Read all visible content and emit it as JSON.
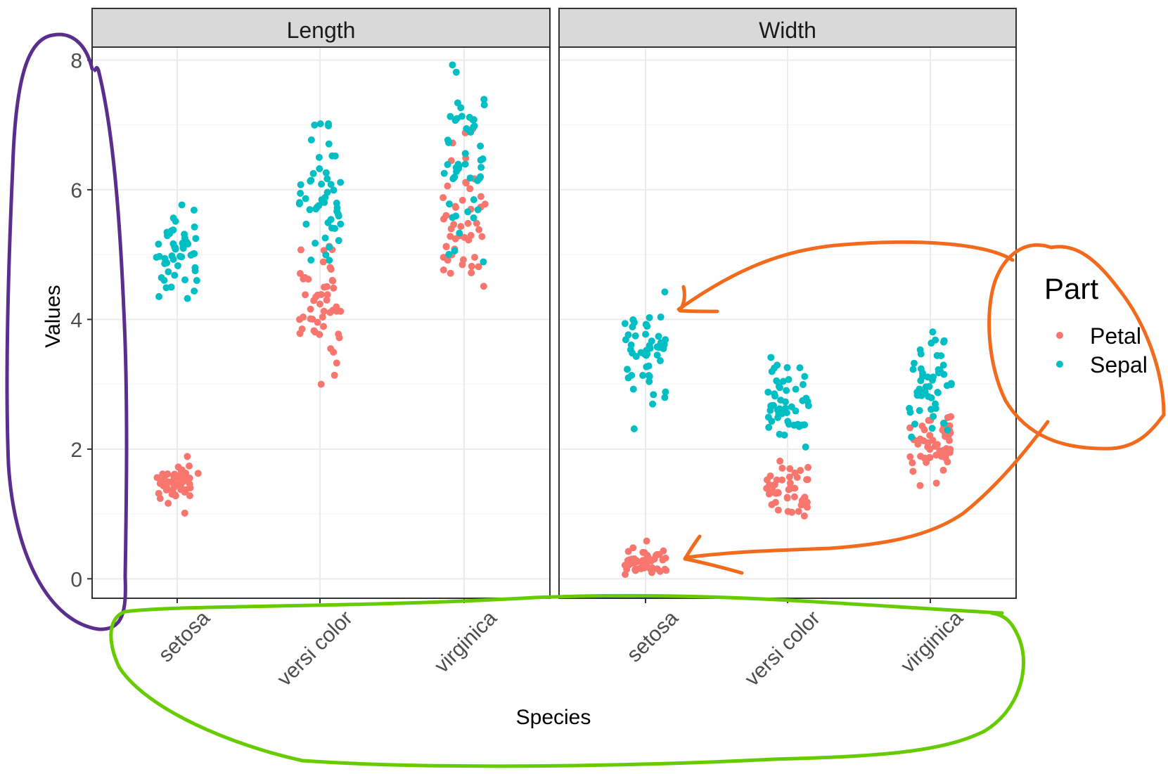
{
  "chart_data": {
    "type": "scatter",
    "style": "jittered strip chart, faceted",
    "facets": [
      "Length",
      "Width"
    ],
    "categories": [
      "setosa",
      "versicolor",
      "virginica"
    ],
    "x_tick_labels": [
      "setosa",
      "versi color",
      "virginica"
    ],
    "xlabel": "Species",
    "ylabel": "Values",
    "ylim": [
      -0.3,
      8.2
    ],
    "yticks": [
      0,
      2,
      4,
      6,
      8
    ],
    "grid": true,
    "legend": {
      "title": "Part",
      "position": "right",
      "entries": [
        "Petal",
        "Sepal"
      ]
    },
    "colors": {
      "Petal": "#F8766D",
      "Sepal": "#00BFC4"
    },
    "series": [
      {
        "name": "Petal",
        "facet": "Length",
        "species": "setosa",
        "summary": {
          "min": 1.0,
          "max": 1.9,
          "center": 1.46,
          "spread": 0.17
        }
      },
      {
        "name": "Petal",
        "facet": "Length",
        "species": "versicolor",
        "summary": {
          "min": 3.0,
          "max": 5.1,
          "center": 4.26,
          "spread": 0.47
        }
      },
      {
        "name": "Petal",
        "facet": "Length",
        "species": "virginica",
        "summary": {
          "min": 4.5,
          "max": 6.9,
          "center": 5.55,
          "spread": 0.55
        }
      },
      {
        "name": "Sepal",
        "facet": "Length",
        "species": "setosa",
        "summary": {
          "min": 4.3,
          "max": 5.8,
          "center": 5.0,
          "spread": 0.35
        }
      },
      {
        "name": "Sepal",
        "facet": "Length",
        "species": "versicolor",
        "summary": {
          "min": 4.9,
          "max": 7.0,
          "center": 5.94,
          "spread": 0.52
        }
      },
      {
        "name": "Sepal",
        "facet": "Length",
        "species": "virginica",
        "summary": {
          "min": 4.9,
          "max": 7.9,
          "center": 6.59,
          "spread": 0.64
        }
      },
      {
        "name": "Petal",
        "facet": "Width",
        "species": "setosa",
        "summary": {
          "min": 0.1,
          "max": 0.6,
          "center": 0.25,
          "spread": 0.1
        }
      },
      {
        "name": "Petal",
        "facet": "Width",
        "species": "versicolor",
        "summary": {
          "min": 1.0,
          "max": 1.8,
          "center": 1.33,
          "spread": 0.2
        }
      },
      {
        "name": "Petal",
        "facet": "Width",
        "species": "virginica",
        "summary": {
          "min": 1.4,
          "max": 2.5,
          "center": 2.03,
          "spread": 0.27
        }
      },
      {
        "name": "Sepal",
        "facet": "Width",
        "species": "setosa",
        "summary": {
          "min": 2.3,
          "max": 4.4,
          "center": 3.43,
          "spread": 0.38
        }
      },
      {
        "name": "Sepal",
        "facet": "Width",
        "species": "versicolor",
        "summary": {
          "min": 2.0,
          "max": 3.4,
          "center": 2.77,
          "spread": 0.31
        }
      },
      {
        "name": "Sepal",
        "facet": "Width",
        "species": "virginica",
        "summary": {
          "min": 2.2,
          "max": 3.8,
          "center": 2.97,
          "spread": 0.32
        }
      }
    ],
    "annotations": [
      {
        "kind": "freehand-loop",
        "color": "#5B2D8E",
        "around": "y-axis"
      },
      {
        "kind": "freehand-loop",
        "color": "#66CC00",
        "around": "x-axis labels"
      },
      {
        "kind": "freehand-loop",
        "color": "#F26B1D",
        "around": "legend"
      },
      {
        "kind": "freehand-arrow",
        "color": "#F26B1D",
        "from": "legend",
        "to": "Width setosa Sepal"
      },
      {
        "kind": "freehand-arrow",
        "color": "#F26B1D",
        "from": "legend",
        "to": "Width setosa Petal"
      }
    ]
  }
}
